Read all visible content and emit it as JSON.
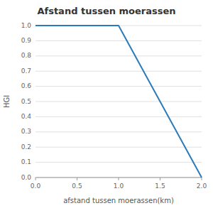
{
  "chart_data": {
    "type": "line",
    "title": "Afstand tussen moerassen",
    "xlabel": "afstand tussen moerassen(km)",
    "ylabel": "HGI",
    "x": [
      0.0,
      1.0,
      2.0
    ],
    "values": [
      1.0,
      1.0,
      0.0
    ],
    "color": "#2b7bba",
    "xlim": [
      0.0,
      2.0
    ],
    "ylim": [
      0.0,
      1.0
    ],
    "xticks": [
      {
        "value": 0.0,
        "label": "0.0"
      },
      0.5,
      {
        "value": 1.0,
        "label": "1.0"
      },
      1.5,
      {
        "value": 2.0,
        "label": "2.0"
      }
    ],
    "yticks": [
      {
        "value": 0.0,
        "label": "0.0"
      },
      0.1,
      0.2,
      0.3,
      0.4,
      0.5,
      0.6,
      0.7,
      0.8,
      0.9,
      {
        "value": 1.0,
        "label": "1.0"
      }
    ],
    "grid": true
  }
}
